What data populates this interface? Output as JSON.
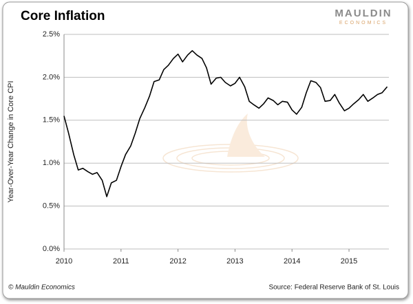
{
  "chart_data": {
    "type": "line",
    "title": "Core Inflation",
    "logo": {
      "name": "MAULDIN",
      "tagline": "ECONOMICS"
    },
    "y_label": "Year-Over-Year Change in Core CPI",
    "footer_left": "© Mauldin Economics",
    "footer_right": "Source: Federal Reserve Bank of St. Louis",
    "x": [
      2010.0,
      2010.08,
      2010.17,
      2010.25,
      2010.33,
      2010.42,
      2010.5,
      2010.58,
      2010.67,
      2010.75,
      2010.83,
      2010.92,
      2011.0,
      2011.08,
      2011.17,
      2011.25,
      2011.33,
      2011.42,
      2011.5,
      2011.58,
      2011.67,
      2011.75,
      2011.83,
      2011.92,
      2012.0,
      2012.08,
      2012.17,
      2012.25,
      2012.33,
      2012.42,
      2012.5,
      2012.58,
      2012.67,
      2012.75,
      2012.83,
      2012.92,
      2013.0,
      2013.08,
      2013.17,
      2013.25,
      2013.33,
      2013.42,
      2013.5,
      2013.58,
      2013.67,
      2013.75,
      2013.83,
      2013.92,
      2014.0,
      2014.08,
      2014.17,
      2014.25,
      2014.33,
      2014.42,
      2014.5,
      2014.58,
      2014.67,
      2014.75,
      2014.83,
      2014.92,
      2015.0,
      2015.08,
      2015.17,
      2015.25,
      2015.33,
      2015.42,
      2015.5,
      2015.58,
      2015.67
    ],
    "series": [
      {
        "name": "Core CPI",
        "color": "#000000",
        "values": [
          1.55,
          1.35,
          1.1,
          0.92,
          0.94,
          0.9,
          0.87,
          0.89,
          0.8,
          0.61,
          0.77,
          0.8,
          0.96,
          1.1,
          1.2,
          1.35,
          1.52,
          1.65,
          1.78,
          1.95,
          1.97,
          2.09,
          2.14,
          2.22,
          2.27,
          2.18,
          2.26,
          2.31,
          2.26,
          2.22,
          2.11,
          1.92,
          1.99,
          2.0,
          1.94,
          1.9,
          1.93,
          2.0,
          1.89,
          1.72,
          1.68,
          1.64,
          1.69,
          1.76,
          1.73,
          1.68,
          1.72,
          1.71,
          1.62,
          1.57,
          1.65,
          1.82,
          1.96,
          1.94,
          1.88,
          1.72,
          1.73,
          1.8,
          1.7,
          1.61,
          1.64,
          1.69,
          1.74,
          1.8,
          1.72,
          1.76,
          1.8,
          1.82,
          1.89
        ]
      }
    ],
    "xlim": [
      2010,
      2015.7
    ],
    "xticks": [
      2010,
      2011,
      2012,
      2013,
      2014,
      2015
    ],
    "ylim": [
      0,
      2.5
    ],
    "yticks": [
      {
        "value": 0,
        "label": "0.0%"
      },
      {
        "value": 0.5,
        "label": "0.5%"
      },
      {
        "value": 1,
        "label": "1.0%"
      },
      {
        "value": 1.5,
        "label": "1.5%"
      },
      {
        "value": 2,
        "label": "2.0%"
      },
      {
        "value": 2.5,
        "label": "2.5%"
      }
    ],
    "grid": true
  }
}
